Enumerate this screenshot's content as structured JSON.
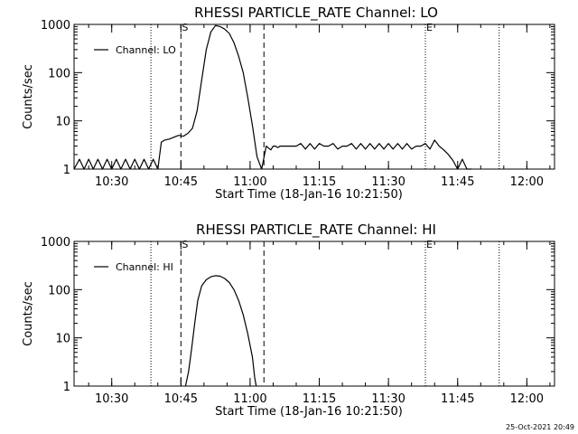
{
  "footer_timestamp": "25-Oct-2021 20:49",
  "chart_data": [
    {
      "type": "line",
      "title": "RHESSI PARTICLE_RATE Channel: LO",
      "xlabel": "Start Time (18-Jan-16 10:21:50)",
      "ylabel": "Counts/sec",
      "y_scale": "log",
      "xlim": [
        "10:21:50",
        "12:06:00"
      ],
      "ylim": [
        1,
        1000
      ],
      "x_ticks": [
        "10:30",
        "10:45",
        "11:00",
        "11:15",
        "11:30",
        "11:45",
        "12:00"
      ],
      "y_ticks": [
        "1",
        "10",
        "100",
        "1000"
      ],
      "legend": "top-left",
      "series": [
        {
          "name": "Channel: LO",
          "x": [
            "10:21:50",
            "10:23:00",
            "10:24:00",
            "10:25:00",
            "10:26:00",
            "10:27:00",
            "10:28:00",
            "10:29:00",
            "10:30:00",
            "10:31:00",
            "10:32:00",
            "10:33:00",
            "10:34:00",
            "10:35:00",
            "10:36:00",
            "10:37:00",
            "10:38:00",
            "10:39:00",
            "10:40:00",
            "10:40:45",
            "10:41:30",
            "10:42:30",
            "10:43:30",
            "10:44:30",
            "10:45:30",
            "10:46:30",
            "10:47:30",
            "10:48:30",
            "10:49:30",
            "10:50:30",
            "10:51:30",
            "10:52:30",
            "10:53:30",
            "10:54:30",
            "10:55:30",
            "10:56:30",
            "10:57:30",
            "10:58:30",
            "10:59:30",
            "11:00:30",
            "11:01:30",
            "11:02:30",
            "11:03:30",
            "11:04:30",
            "11:05:00",
            "11:05:30",
            "11:06:00",
            "11:06:30",
            "11:07:30",
            "11:09:00",
            "11:10:00",
            "11:11:00",
            "11:12:00",
            "11:13:00",
            "11:14:00",
            "11:15:00",
            "11:16:00",
            "11:17:00",
            "11:18:00",
            "11:19:00",
            "11:20:00",
            "11:21:00",
            "11:22:00",
            "11:23:00",
            "11:24:00",
            "11:25:00",
            "11:26:00",
            "11:27:00",
            "11:28:00",
            "11:29:00",
            "11:30:00",
            "11:31:00",
            "11:32:00",
            "11:33:00",
            "11:34:00",
            "11:35:00",
            "11:36:00",
            "11:37:00",
            "11:38:00",
            "11:39:00",
            "11:40:00",
            "11:41:00",
            "11:42:00",
            "11:43:00",
            "11:44:00",
            "11:45:00",
            "11:46:00",
            "11:47:00",
            "11:48:00"
          ],
          "y": [
            1,
            1.6,
            1,
            1.6,
            1,
            1.6,
            1,
            1.6,
            1,
            1.6,
            1,
            1.6,
            1,
            1.6,
            1,
            1.6,
            1,
            1.6,
            1,
            3.6,
            4,
            4.2,
            4.6,
            5,
            4.8,
            5.5,
            7,
            16,
            70,
            300,
            700,
            950,
            900,
            800,
            650,
            420,
            220,
            100,
            30,
            8,
            1.8,
            1,
            3,
            2.5,
            3,
            3,
            2.8,
            3,
            3,
            3,
            3,
            3.4,
            2.6,
            3.4,
            2.6,
            3.4,
            3,
            3,
            3.4,
            2.6,
            3,
            3,
            3.4,
            2.6,
            3.4,
            2.6,
            3.4,
            2.6,
            3.4,
            2.6,
            3.4,
            2.6,
            3.4,
            2.6,
            3.4,
            2.6,
            3,
            3,
            3.4,
            2.6,
            4,
            3,
            2.5,
            2,
            1.5,
            1,
            1.6,
            1,
            1
          ]
        }
      ],
      "vlines": [
        {
          "label": "",
          "x": "10:38:30",
          "style": "dotted"
        },
        {
          "label": "S",
          "x": "10:45:00",
          "style": "dashed"
        },
        {
          "label": "",
          "x": "11:03:00",
          "style": "dashed"
        },
        {
          "label": "E",
          "x": "11:38:00",
          "style": "dotted"
        },
        {
          "label": "",
          "x": "11:54:00",
          "style": "dotted"
        }
      ]
    },
    {
      "type": "line",
      "title": "RHESSI PARTICLE_RATE Channel: HI",
      "xlabel": "Start Time (18-Jan-16 10:21:50)",
      "ylabel": "Counts/sec",
      "y_scale": "log",
      "xlim": [
        "10:21:50",
        "12:06:00"
      ],
      "ylim": [
        1,
        1000
      ],
      "x_ticks": [
        "10:30",
        "10:45",
        "11:00",
        "11:15",
        "11:30",
        "11:45",
        "12:00"
      ],
      "y_ticks": [
        "1",
        "10",
        "100",
        "1000"
      ],
      "legend": "top-left",
      "series": [
        {
          "name": "Channel: HI",
          "x": [
            "10:46:00",
            "10:46:40",
            "10:47:20",
            "10:48:00",
            "10:48:40",
            "10:49:30",
            "10:50:30",
            "10:51:30",
            "10:52:30",
            "10:53:30",
            "10:54:30",
            "10:55:30",
            "10:56:30",
            "10:57:30",
            "10:58:30",
            "10:59:30",
            "11:00:30",
            "11:01:00",
            "11:01:20"
          ],
          "y": [
            1,
            2,
            6,
            20,
            60,
            120,
            160,
            185,
            195,
            190,
            170,
            140,
            100,
            60,
            30,
            12,
            4,
            1.5,
            1
          ]
        }
      ],
      "vlines": [
        {
          "label": "",
          "x": "10:38:30",
          "style": "dotted"
        },
        {
          "label": "S",
          "x": "10:45:00",
          "style": "dashed"
        },
        {
          "label": "",
          "x": "11:03:00",
          "style": "dashed"
        },
        {
          "label": "E",
          "x": "11:38:00",
          "style": "dotted"
        },
        {
          "label": "",
          "x": "11:54:00",
          "style": "dotted"
        }
      ]
    }
  ]
}
